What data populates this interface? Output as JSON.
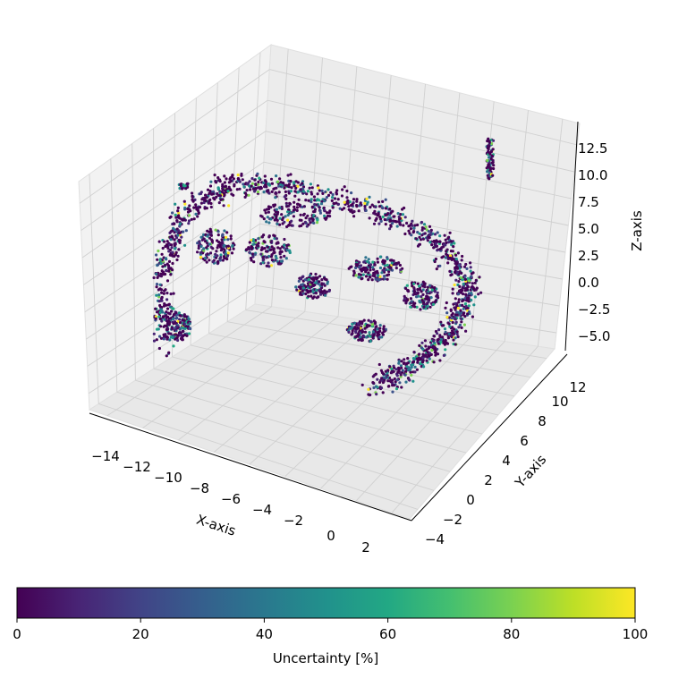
{
  "chart_data": {
    "type": "scatter",
    "projection": "3d",
    "xlabel": "X-axis",
    "ylabel": "Y-axis",
    "zlabel": "Z-axis",
    "xlim": [
      -15,
      3
    ],
    "ylim": [
      -5,
      13
    ],
    "zlim": [
      -6.5,
      14.5
    ],
    "x_ticks": [
      "−14",
      "−12",
      "−10",
      "−8",
      "−6",
      "−4",
      "−2",
      "0",
      "2"
    ],
    "y_ticks": [
      "−4",
      "−2",
      "0",
      "2",
      "4",
      "6",
      "8",
      "10",
      "12"
    ],
    "z_ticks": [
      "−5.0",
      "−2.5",
      "0.0",
      "2.5",
      "5.0",
      "7.5",
      "10.0",
      "12.5"
    ],
    "grid": true,
    "colormap": "viridis",
    "colorbar": {
      "label": "Uncertainty [%]",
      "range": [
        0,
        100
      ],
      "ticks": [
        "0",
        "20",
        "40",
        "60",
        "80",
        "100"
      ],
      "orientation": "horizontal",
      "placement": "bottom"
    },
    "point_shape": "curved band arcing from x≈-14 to x≈-2, with a detached cluster near x≈2, z≈12"
  }
}
